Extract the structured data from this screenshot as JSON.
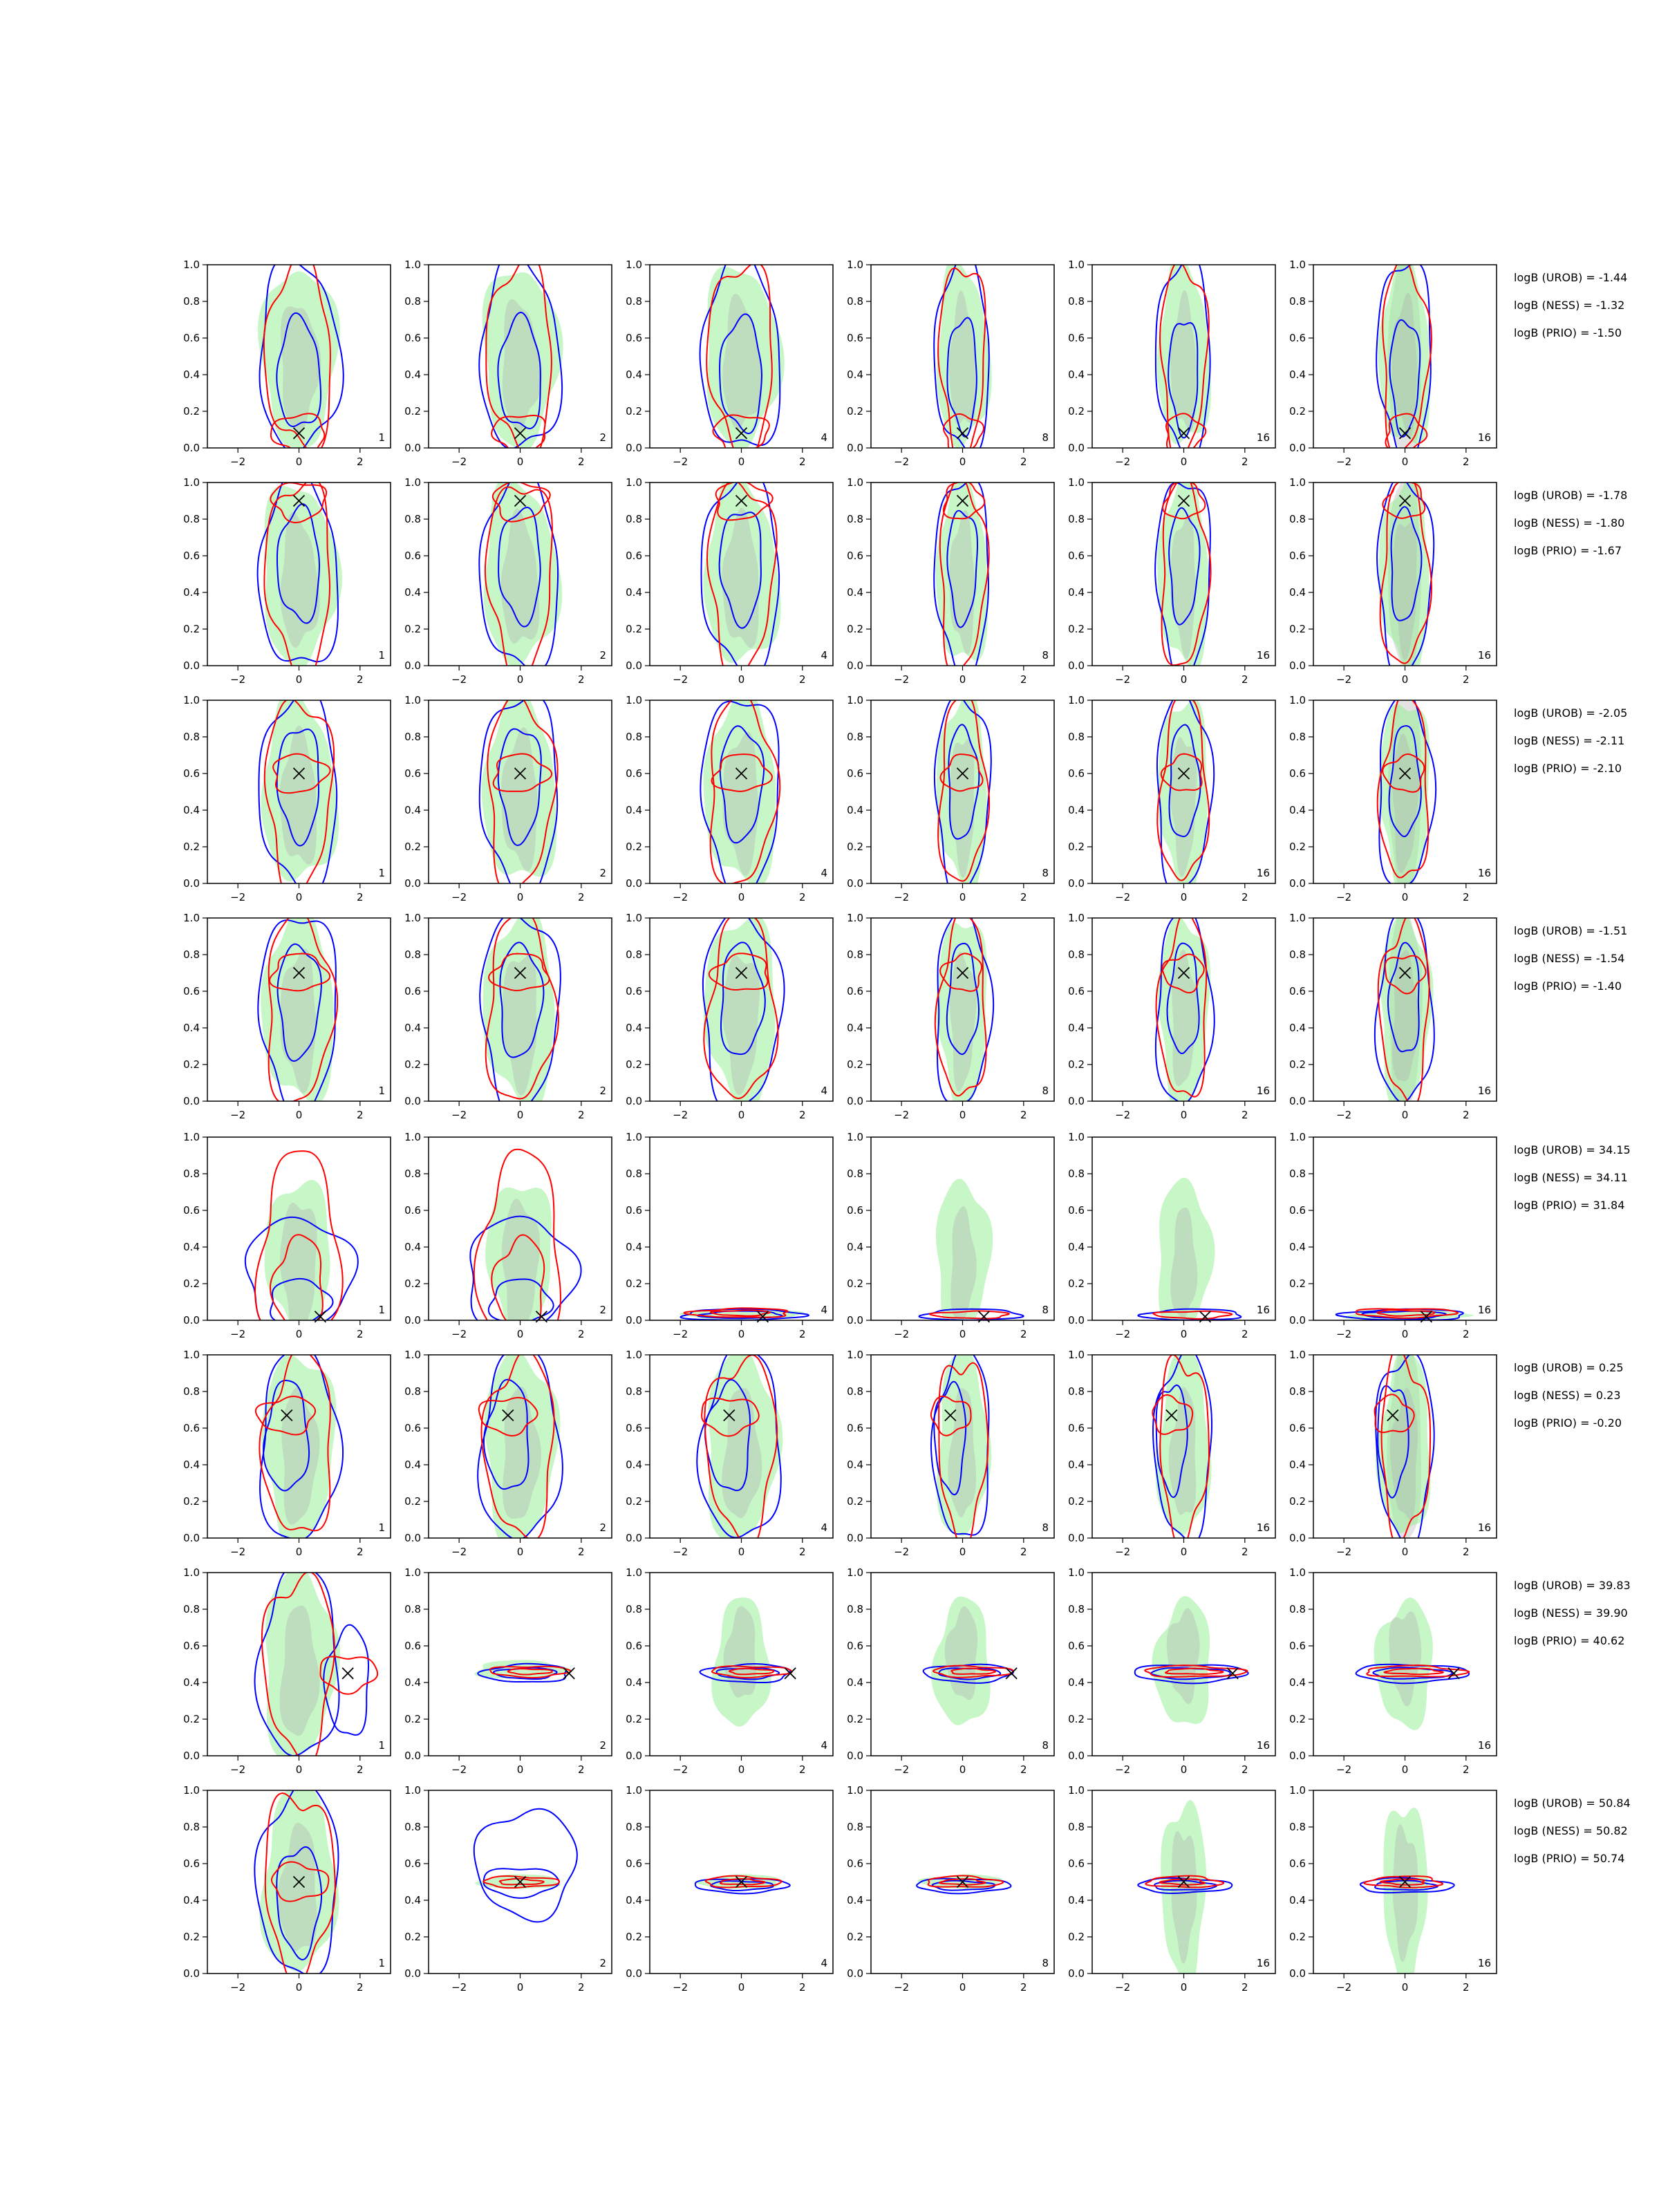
{
  "chart_data": {
    "type": "contour-grid",
    "rows": 8,
    "columns": 6,
    "xlim": [
      -3,
      3
    ],
    "ylim": [
      0,
      1
    ],
    "x_ticks": [
      -2,
      0,
      2
    ],
    "y_ticks": [
      "0.0",
      "0.2",
      "0.4",
      "0.6",
      "0.8",
      "1.0"
    ],
    "column_sample_labels": [
      "1",
      "2",
      "4",
      "8",
      "16",
      "16"
    ],
    "colors": {
      "blue": "#0000ff",
      "red": "#ff0000",
      "green_fill": "#90ee90",
      "grey_fill": "#b0b0b0",
      "marker": "#000000"
    },
    "markers": [
      {
        "x": 0.0,
        "y": 0.08
      },
      {
        "x": 0.0,
        "y": 0.9
      },
      {
        "x": 0.0,
        "y": 0.6
      },
      {
        "x": 0.0,
        "y": 0.7
      },
      {
        "x": 0.7,
        "y": 0.02
      },
      {
        "x": -0.4,
        "y": 0.67
      },
      {
        "x": 1.6,
        "y": 0.45
      },
      {
        "x": 0.0,
        "y": 0.5
      }
    ],
    "logB": [
      [
        "logB (UROB) = -1.44",
        "logB (NESS) = -1.32",
        "logB (PRIO) = -1.50"
      ],
      [
        "logB (UROB) = -1.78",
        "logB (NESS) = -1.80",
        "logB (PRIO) = -1.67"
      ],
      [
        "logB (UROB) = -2.05",
        "logB (NESS) = -2.11",
        "logB (PRIO) = -2.10"
      ],
      [
        "logB (UROB) = -1.51",
        "logB (NESS) = -1.54",
        "logB (PRIO) = -1.40"
      ],
      [
        "logB (UROB) = 34.15",
        "logB (NESS) = 34.11",
        "logB (PRIO) = 31.84"
      ],
      [
        "logB (UROB) = 0.25",
        "logB (NESS) = 0.23",
        "logB (PRIO) = -0.20"
      ],
      [
        "logB (UROB) = 39.83",
        "logB (NESS) = 39.90",
        "logB (PRIO) = 40.62"
      ],
      [
        "logB (UROB) = 50.84",
        "logB (NESS) = 50.82",
        "logB (PRIO) = 50.74"
      ]
    ]
  }
}
